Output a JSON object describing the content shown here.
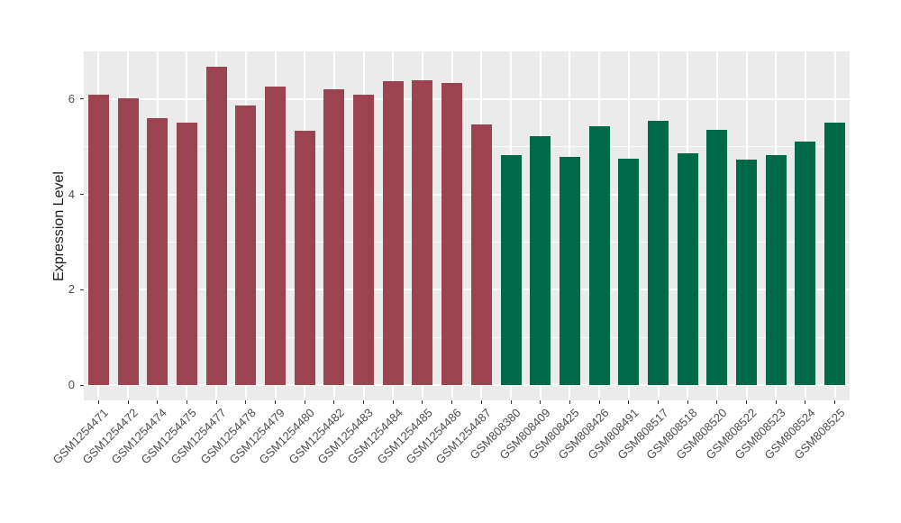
{
  "chart_data": {
    "type": "bar",
    "title": "",
    "xlabel": "",
    "ylabel": "Expression Level",
    "categories": [
      "GSM1254471",
      "GSM1254472",
      "GSM1254474",
      "GSM1254475",
      "GSM1254477",
      "GSM1254478",
      "GSM1254479",
      "GSM1254480",
      "GSM1254482",
      "GSM1254483",
      "GSM1254484",
      "GSM1254485",
      "GSM1254486",
      "GSM1254487",
      "GSM808380",
      "GSM808409",
      "GSM808425",
      "GSM808426",
      "GSM808491",
      "GSM808517",
      "GSM808518",
      "GSM808520",
      "GSM808522",
      "GSM808523",
      "GSM808524",
      "GSM808525"
    ],
    "values": [
      6.09,
      6.01,
      5.6,
      5.5,
      6.68,
      5.86,
      6.26,
      5.34,
      6.2,
      6.09,
      6.38,
      6.4,
      6.34,
      5.46,
      4.83,
      5.22,
      4.78,
      5.43,
      4.75,
      5.55,
      4.86,
      5.35,
      4.73,
      4.82,
      5.11,
      5.5
    ],
    "bar_color_index": [
      0,
      0,
      0,
      0,
      0,
      0,
      0,
      0,
      0,
      0,
      0,
      0,
      0,
      0,
      1,
      1,
      1,
      1,
      1,
      1,
      1,
      1,
      1,
      1,
      1,
      1
    ],
    "palette": [
      "#9C4351",
      "#006A48"
    ],
    "ylim": [
      0,
      7
    ],
    "yticks": [
      0,
      2,
      4,
      6
    ],
    "yticks_minor": [
      1,
      3,
      5
    ],
    "ytick_labels": [
      "0",
      "2",
      "4",
      "6"
    ],
    "grid": true,
    "legend_position": "none",
    "panel_background": "#EBEBEB",
    "gridline_color": "#FFFFFF",
    "axis_text_color": "#4D4D4D",
    "axis_title_color": "#1A1A1A",
    "x_label_angle_deg": 45
  }
}
